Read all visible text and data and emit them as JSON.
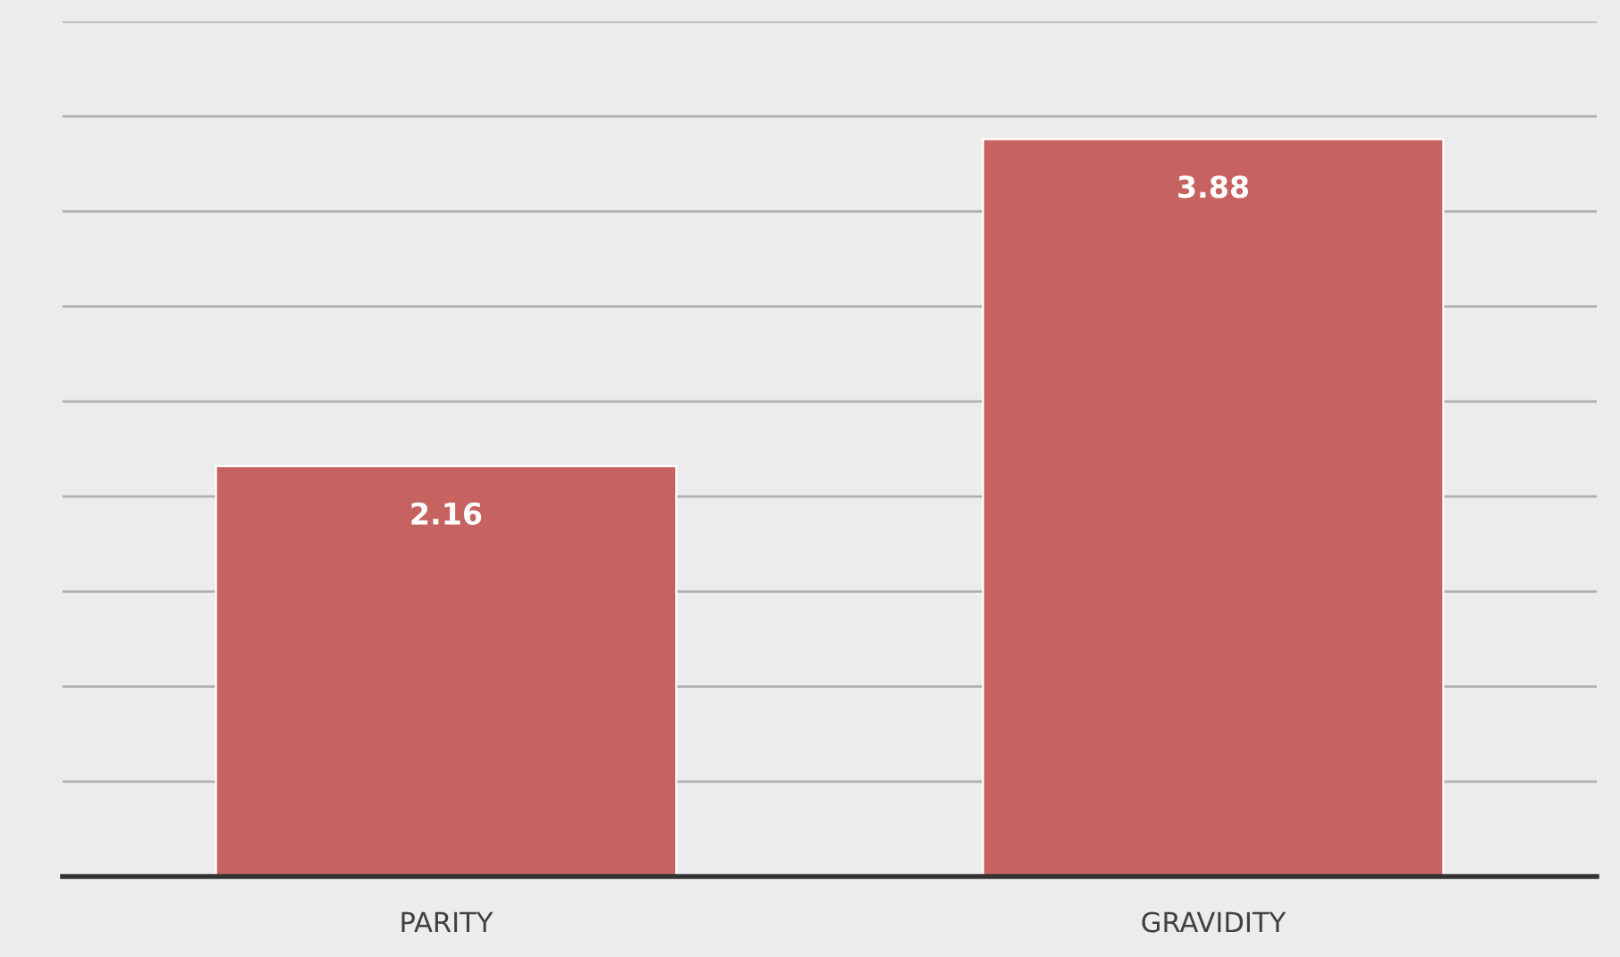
{
  "chart_data": {
    "type": "bar",
    "categories": [
      "PARITY",
      "GRAVIDITY"
    ],
    "values": [
      2.16,
      3.88
    ],
    "color": "#c6625f",
    "data_labels": true,
    "ylim": [
      0,
      4.5
    ],
    "yticks": [
      {
        "value": 0.5,
        "label": null
      },
      {
        "value": 1.0,
        "label": null
      },
      {
        "value": 1.5,
        "label": null
      },
      {
        "value": 2.0,
        "label": null
      },
      {
        "value": 2.5,
        "label": null
      },
      {
        "value": 3.0,
        "label": null
      },
      {
        "value": 3.5,
        "label": null
      },
      {
        "value": 4.0,
        "label": null
      },
      {
        "value": 4.5,
        "label": null
      }
    ],
    "tick_labels": "x",
    "grid": "y",
    "legend": false
  }
}
